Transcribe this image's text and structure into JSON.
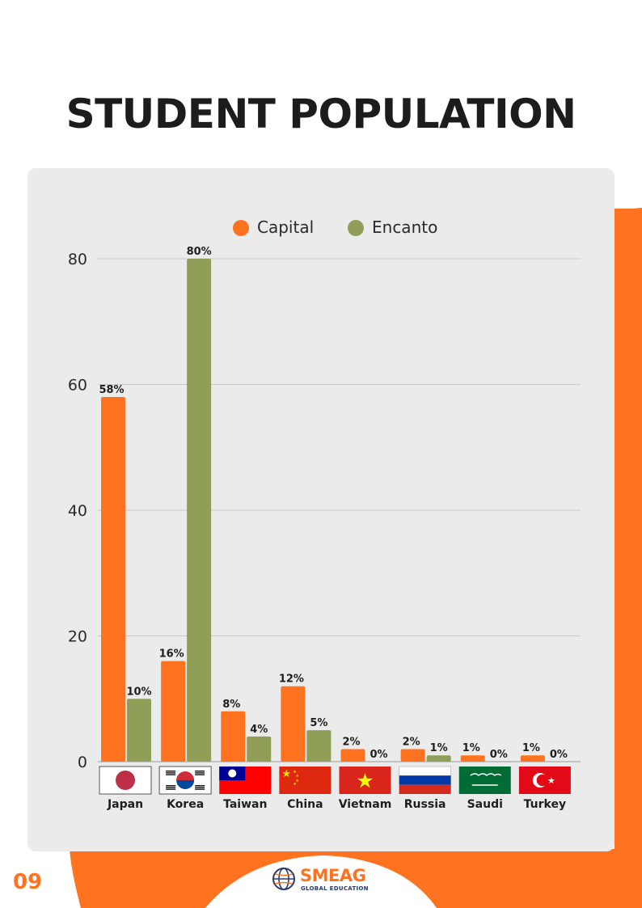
{
  "page": {
    "title": "STUDENT POPULATION",
    "page_number": "09",
    "accent_color": "#ff7220",
    "panel_color": "#ebebeb"
  },
  "logo": {
    "name": "SMEAG",
    "tagline": "GLOBAL EDUCATION",
    "icon": "globe-icon"
  },
  "chart_data": {
    "type": "bar",
    "categories": [
      "Japan",
      "Korea",
      "Taiwan",
      "China",
      "Vietnam",
      "Russia",
      "Saudi",
      "Turkey"
    ],
    "category_icons": [
      "japan-flag-icon",
      "korea-flag-icon",
      "taiwan-flag-icon",
      "china-flag-icon",
      "vietnam-flag-icon",
      "russia-flag-icon",
      "saudi-flag-icon",
      "turkey-flag-icon"
    ],
    "series": [
      {
        "name": "Capital",
        "color": "#ff7220",
        "values": [
          58,
          16,
          8,
          12,
          2,
          2,
          1,
          1
        ],
        "labels": [
          "58%",
          "16%",
          "8%",
          "12%",
          "2%",
          "2%",
          "1%",
          "1%"
        ]
      },
      {
        "name": "Encanto",
        "color": "#8f9f58",
        "values": [
          10,
          80,
          4,
          5,
          0,
          1,
          0,
          0
        ],
        "labels": [
          "10%",
          "80%",
          "4%",
          "5%",
          "0%",
          "1%",
          "0%",
          "0%"
        ]
      }
    ],
    "yticks": [
      "0",
      "20",
      "40",
      "60",
      "80"
    ],
    "ylim": [
      0,
      80
    ],
    "grid": true,
    "legend": "top-center"
  }
}
